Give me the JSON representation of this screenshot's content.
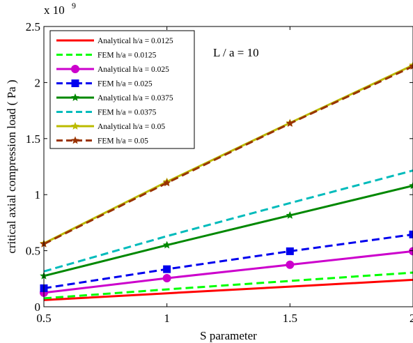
{
  "chart_data": {
    "type": "line",
    "xlabel": "S parameter",
    "ylabel": "critical axial compression load ( Pa )",
    "y_multiplier": "x 10",
    "y_multiplier_exp": "9",
    "annotation": "L / a = 10",
    "xlim": [
      0.5,
      2
    ],
    "ylim": [
      0,
      2.5
    ],
    "x_ticks": [
      {
        "value": 0.5,
        "label": "0.5"
      },
      {
        "value": 1,
        "label": "1"
      },
      {
        "value": 1.5,
        "label": "1.5"
      },
      {
        "value": 2,
        "label": "2"
      }
    ],
    "y_ticks": [
      {
        "value": 0,
        "label": "0"
      },
      {
        "value": 0.5,
        "label": "0.5"
      },
      {
        "value": 1,
        "label": "1"
      },
      {
        "value": 1.5,
        "label": "1.5"
      },
      {
        "value": 2,
        "label": "2"
      },
      {
        "value": 2.5,
        "label": "2.5"
      }
    ],
    "grid": false,
    "legend_position": "top-left",
    "x": [
      0.5,
      1,
      1.5,
      2
    ],
    "series": [
      {
        "name": "Analytical h/a = 0.0125",
        "values": [
          0.06,
          0.12,
          0.18,
          0.24
        ],
        "color": "#ff0000",
        "dash": "solid",
        "marker": "none"
      },
      {
        "name": "FEM h/a = 0.0125",
        "values": [
          0.075,
          0.155,
          0.23,
          0.305
        ],
        "color": "#00ff00",
        "dash": "dashed",
        "marker": "none"
      },
      {
        "name": "Analytical h/a = 0.025",
        "values": [
          0.125,
          0.255,
          0.375,
          0.495
        ],
        "color": "#cc00cc",
        "dash": "solid",
        "marker": "circle"
      },
      {
        "name": "FEM h/a = 0.025",
        "values": [
          0.165,
          0.335,
          0.495,
          0.645
        ],
        "color": "#0000ee",
        "dash": "dashed",
        "marker": "square"
      },
      {
        "name": "Analytical h/a = 0.0375",
        "values": [
          0.275,
          0.55,
          0.815,
          1.08
        ],
        "color": "#008800",
        "dash": "solid",
        "marker": "star"
      },
      {
        "name": "FEM h/a = 0.0375",
        "values": [
          0.315,
          0.63,
          0.925,
          1.215
        ],
        "color": "#00bbbb",
        "dash": "dashed",
        "marker": "none"
      },
      {
        "name": "Analytical h/a = 0.05",
        "values": [
          0.565,
          1.115,
          1.64,
          2.155
        ],
        "color": "#bbbb00",
        "dash": "solid",
        "marker": "star"
      },
      {
        "name": "FEM h/a = 0.05",
        "values": [
          0.56,
          1.105,
          1.635,
          2.145
        ],
        "color": "#993300",
        "dash": "dashed",
        "marker": "star"
      }
    ]
  }
}
